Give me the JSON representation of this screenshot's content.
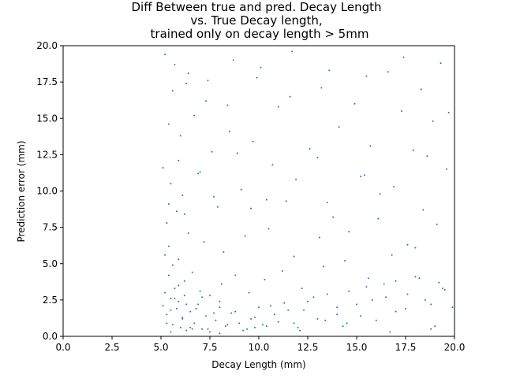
{
  "chart_data": {
    "type": "scatter",
    "title_lines": [
      "Diff Between true and pred. Decay Length",
      "vs. True Decay length,",
      "trained only on decay length > 5mm"
    ],
    "xlabel": "Decay Length (mm)",
    "ylabel": "Prediction error (mm)",
    "xlim": [
      0,
      20
    ],
    "ylim": [
      0,
      20
    ],
    "x_ticks": [
      0,
      2.5,
      5,
      7.5,
      10,
      12.5,
      15,
      17.5,
      20
    ],
    "x_tick_labels": [
      "0.0",
      "2.5",
      "5.0",
      "7.5",
      "10.0",
      "12.5",
      "15.0",
      "17.5",
      "20.0"
    ],
    "y_ticks": [
      0,
      2.5,
      5,
      7.5,
      10,
      12.5,
      15,
      17.5,
      20
    ],
    "y_tick_labels": [
      "0.0",
      "2.5",
      "5.0",
      "7.5",
      "10.0",
      "12.5",
      "15.0",
      "17.5",
      "20.0"
    ],
    "grid": false,
    "marker_color": "#1f77b4",
    "series": [
      {
        "x": [
          5.1,
          5.2,
          5.3,
          5.4,
          5.5,
          5.6,
          5.7,
          5.8,
          5.9,
          6.0,
          6.1,
          6.2,
          6.3,
          6.5,
          6.7,
          6.9,
          7.1,
          7.3,
          7.5,
          7.8,
          8.0,
          8.3,
          8.6,
          9.0,
          9.4,
          9.8,
          10.2,
          10.6,
          11.0,
          11.5,
          12.0,
          12.5,
          13.0,
          13.5,
          14.0,
          14.5,
          15.0,
          15.5,
          16.0,
          16.5,
          17.0,
          17.5,
          18.0,
          18.5,
          19.0,
          19.5,
          19.9,
          5.2,
          5.4,
          5.6,
          5.9,
          6.2,
          6.6,
          7.0,
          7.5,
          8.1,
          8.8,
          9.5,
          10.3,
          11.2,
          12.2,
          13.3,
          14.4,
          15.6,
          16.8,
          18.0,
          19.2,
          5.3,
          5.8,
          6.4,
          7.2,
          8.2,
          9.3,
          10.5,
          11.8,
          13.1,
          14.6,
          16.1,
          17.6,
          19.1,
          5.5,
          6.1,
          6.9,
          7.9,
          9.1,
          10.4,
          11.9,
          13.5,
          15.2,
          16.9,
          18.6,
          5.3,
          5.5,
          5.7,
          5.9,
          6.1,
          6.3,
          6.5,
          6.8,
          7.1,
          7.4,
          7.7,
          8.0,
          8.4,
          8.8,
          9.2,
          9.6,
          10.0,
          10.4,
          10.8,
          11.3,
          11.8,
          12.3,
          12.8,
          13.4,
          14.0,
          14.6,
          15.2,
          15.8,
          16.4,
          17.0,
          17.6,
          18.2,
          18.8,
          19.4,
          5.4,
          6.0,
          6.7,
          7.6,
          8.5,
          9.7,
          11.0,
          12.6,
          14.1,
          15.7,
          17.3,
          18.9,
          5.6,
          6.3,
          7.3,
          8.4,
          9.9,
          11.6,
          13.2,
          14.9,
          16.6,
          18.3,
          19.7,
          5.2,
          5.7,
          6.4,
          7.4,
          8.7,
          10.1,
          11.7,
          13.6,
          15.5,
          17.4,
          19.3,
          5.5,
          6.6,
          8.0,
          9.8,
          12.1,
          14.3,
          16.7,
          18.8,
          5.4,
          6.2,
          7.7,
          9.6,
          11.4,
          13.8,
          16.2,
          18.4,
          5.1,
          5.9,
          7.0,
          8.9,
          10.7,
          13.0,
          15.4,
          17.9,
          19.6
        ],
        "y": [
          2.1,
          3.0,
          1.5,
          4.2,
          2.6,
          0.8,
          3.3,
          1.9,
          2.4,
          0.6,
          1.2,
          2.8,
          0.4,
          1.7,
          0.9,
          2.2,
          0.5,
          1.4,
          0.3,
          1.1,
          2.0,
          0.7,
          1.6,
          0.9,
          0.5,
          1.3,
          0.8,
          2.1,
          1.0,
          1.8,
          0.6,
          2.4,
          1.2,
          2.9,
          1.5,
          0.9,
          2.2,
          3.4,
          1.1,
          2.7,
          3.8,
          1.9,
          4.1,
          2.5,
          0.7,
          3.2,
          2.0,
          5.6,
          6.2,
          4.9,
          5.3,
          3.8,
          4.4,
          3.1,
          2.8,
          3.6,
          4.2,
          3.0,
          3.9,
          4.5,
          3.3,
          4.8,
          5.2,
          4.0,
          5.6,
          6.1,
          3.7,
          7.8,
          8.6,
          7.1,
          6.5,
          5.8,
          6.9,
          7.4,
          5.5,
          6.8,
          7.2,
          8.1,
          6.3,
          7.7,
          10.5,
          9.7,
          11.2,
          8.9,
          10.1,
          9.4,
          10.8,
          9.2,
          11.0,
          10.3,
          12.4,
          0.9,
          1.8,
          2.6,
          3.5,
          1.3,
          2.2,
          0.6,
          1.9,
          2.7,
          0.5,
          1.6,
          2.4,
          0.8,
          1.7,
          0.4,
          1.2,
          2.0,
          0.7,
          1.5,
          2.3,
          0.9,
          1.8,
          2.7,
          1.1,
          2.0,
          3.1,
          1.4,
          2.5,
          3.6,
          1.7,
          2.9,
          4.0,
          2.2,
          3.3,
          14.6,
          13.8,
          15.2,
          12.7,
          14.1,
          13.4,
          15.8,
          12.9,
          14.4,
          13.1,
          15.5,
          14.8,
          16.9,
          17.4,
          16.2,
          15.9,
          17.8,
          16.5,
          17.1,
          16.0,
          18.2,
          17.0,
          15.4,
          19.4,
          18.7,
          18.1,
          17.6,
          19.0,
          18.5,
          19.6,
          18.3,
          17.9,
          19.2,
          18.8,
          0.3,
          0.5,
          0.2,
          0.6,
          0.4,
          0.7,
          0.3,
          0.5,
          9.1,
          8.4,
          9.6,
          8.8,
          9.3,
          8.2,
          9.8,
          8.7,
          11.6,
          12.1,
          11.3,
          12.6,
          11.8,
          12.3,
          11.1,
          12.8,
          11.5
        ]
      }
    ]
  }
}
